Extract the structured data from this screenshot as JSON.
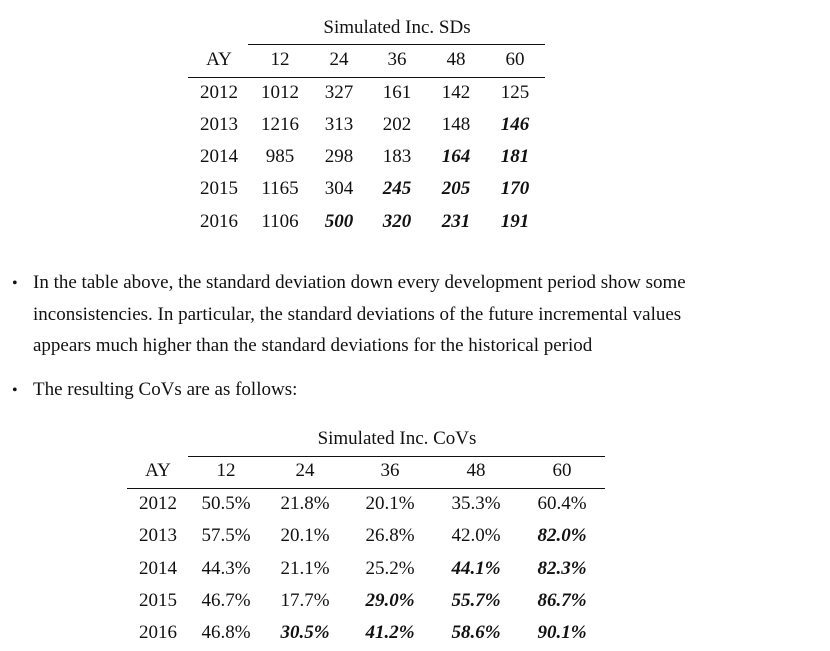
{
  "table1": {
    "title": "Simulated Inc. SDs",
    "row_header": "AY",
    "columns": [
      "12",
      "24",
      "36",
      "48",
      "60"
    ],
    "rows": [
      {
        "ay": "2012",
        "cells": [
          {
            "value": "1012",
            "projected": false
          },
          {
            "value": "327",
            "projected": false
          },
          {
            "value": "161",
            "projected": false
          },
          {
            "value": "142",
            "projected": false
          },
          {
            "value": "125",
            "projected": false
          }
        ]
      },
      {
        "ay": "2013",
        "cells": [
          {
            "value": "1216",
            "projected": false
          },
          {
            "value": "313",
            "projected": false
          },
          {
            "value": "202",
            "projected": false
          },
          {
            "value": "148",
            "projected": false
          },
          {
            "value": "146",
            "projected": true
          }
        ]
      },
      {
        "ay": "2014",
        "cells": [
          {
            "value": "985",
            "projected": false
          },
          {
            "value": "298",
            "projected": false
          },
          {
            "value": "183",
            "projected": false
          },
          {
            "value": "164",
            "projected": true
          },
          {
            "value": "181",
            "projected": true
          }
        ]
      },
      {
        "ay": "2015",
        "cells": [
          {
            "value": "1165",
            "projected": false
          },
          {
            "value": "304",
            "projected": false
          },
          {
            "value": "245",
            "projected": true
          },
          {
            "value": "205",
            "projected": true
          },
          {
            "value": "170",
            "projected": true
          }
        ]
      },
      {
        "ay": "2016",
        "cells": [
          {
            "value": "1106",
            "projected": false
          },
          {
            "value": "500",
            "projected": true
          },
          {
            "value": "320",
            "projected": true
          },
          {
            "value": "231",
            "projected": true
          },
          {
            "value": "191",
            "projected": true
          }
        ]
      }
    ]
  },
  "bullets": [
    {
      "lines": [
        "In the table above, the standard deviation down every development period show some",
        "inconsistencies. In particular, the standard deviations of the future incremental values",
        "appears much higher than the standard deviations for the historical period"
      ]
    },
    {
      "lines": [
        "The resulting CoVs are as follows:"
      ]
    }
  ],
  "table2": {
    "title": "Simulated Inc. CoVs",
    "row_header": "AY",
    "columns": [
      "12",
      "24",
      "36",
      "48",
      "60"
    ],
    "rows": [
      {
        "ay": "2012",
        "cells": [
          {
            "value": "50.5%",
            "projected": false
          },
          {
            "value": "21.8%",
            "projected": false
          },
          {
            "value": "20.1%",
            "projected": false
          },
          {
            "value": "35.3%",
            "projected": false
          },
          {
            "value": "60.4%",
            "projected": false
          }
        ]
      },
      {
        "ay": "2013",
        "cells": [
          {
            "value": "57.5%",
            "projected": false
          },
          {
            "value": "20.1%",
            "projected": false
          },
          {
            "value": "26.8%",
            "projected": false
          },
          {
            "value": "42.0%",
            "projected": false
          },
          {
            "value": "82.0%",
            "projected": true
          }
        ]
      },
      {
        "ay": "2014",
        "cells": [
          {
            "value": "44.3%",
            "projected": false
          },
          {
            "value": "21.1%",
            "projected": false
          },
          {
            "value": "25.2%",
            "projected": false
          },
          {
            "value": "44.1%",
            "projected": true
          },
          {
            "value": "82.3%",
            "projected": true
          }
        ]
      },
      {
        "ay": "2015",
        "cells": [
          {
            "value": "46.7%",
            "projected": false
          },
          {
            "value": "17.7%",
            "projected": false
          },
          {
            "value": "29.0%",
            "projected": true
          },
          {
            "value": "55.7%",
            "projected": true
          },
          {
            "value": "86.7%",
            "projected": true
          }
        ]
      },
      {
        "ay": "2016",
        "cells": [
          {
            "value": "46.8%",
            "projected": false
          },
          {
            "value": "30.5%",
            "projected": true
          },
          {
            "value": "41.2%",
            "projected": true
          },
          {
            "value": "58.6%",
            "projected": true
          },
          {
            "value": "90.1%",
            "projected": true
          }
        ]
      }
    ]
  }
}
